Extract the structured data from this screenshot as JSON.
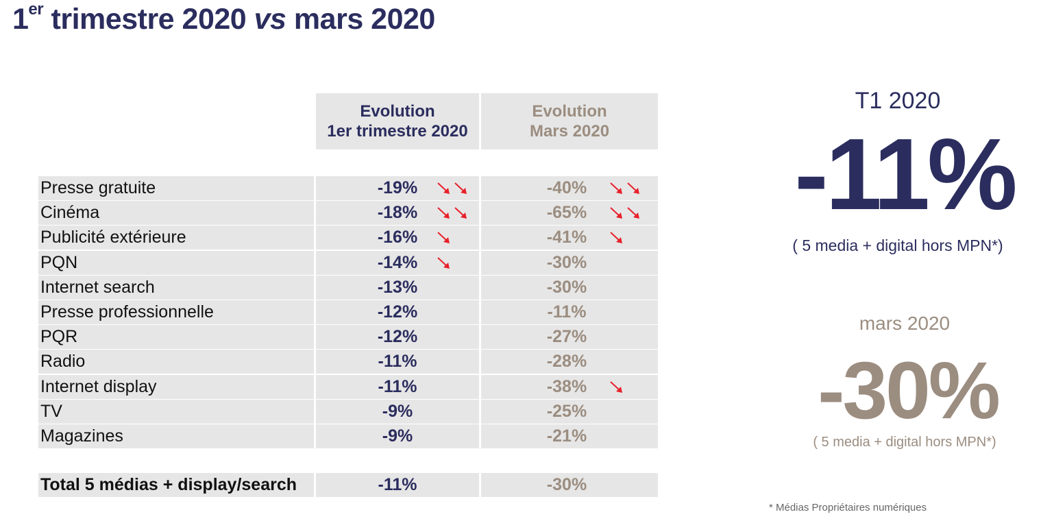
{
  "title": {
    "lead": "1",
    "sup": "er",
    "part1": " trimestre 2020 ",
    "vs": "vs",
    "part2": " mars 2020"
  },
  "table": {
    "header_q1": {
      "line1": "Evolution",
      "line2": "1er trimestre 2020"
    },
    "header_mar": {
      "line1": "Evolution",
      "line2": "Mars 2020"
    },
    "rows": [
      {
        "label": "Presse gratuite",
        "q1": "-19%",
        "q1_arrows": 2,
        "mar": "-40%",
        "mar_arrows": 2
      },
      {
        "label": "Cinéma",
        "q1": "-18%",
        "q1_arrows": 2,
        "mar": "-65%",
        "mar_arrows": 2
      },
      {
        "label": "Publicité extérieure",
        "q1": "-16%",
        "q1_arrows": 1,
        "mar": "-41%",
        "mar_arrows": 1
      },
      {
        "label": "PQN",
        "q1": "-14%",
        "q1_arrows": 1,
        "mar": "-30%",
        "mar_arrows": 0
      },
      {
        "label": "Internet search",
        "q1": "-13%",
        "q1_arrows": 0,
        "mar": "-30%",
        "mar_arrows": 0
      },
      {
        "label": "Presse professionnelle",
        "q1": "-12%",
        "q1_arrows": 0,
        "mar": "-11%",
        "mar_arrows": 0
      },
      {
        "label": "PQR",
        "q1": "-12%",
        "q1_arrows": 0,
        "mar": "-27%",
        "mar_arrows": 0
      },
      {
        "label": "Radio",
        "q1": "-11%",
        "q1_arrows": 0,
        "mar": "-28%",
        "mar_arrows": 0
      },
      {
        "label": "Internet display",
        "q1": "-11%",
        "q1_arrows": 0,
        "mar": "-38%",
        "mar_arrows": 1
      },
      {
        "label": "TV",
        "q1": "-9%",
        "q1_arrows": 0,
        "mar": "-25%",
        "mar_arrows": 0
      },
      {
        "label": "Magazines",
        "q1": "-9%",
        "q1_arrows": 0,
        "mar": "-21%",
        "mar_arrows": 0
      }
    ],
    "total": {
      "label": "Total 5 médias + display/search",
      "q1": "-11%",
      "mar": "-30%"
    }
  },
  "kpi": {
    "t1": {
      "label": "T1 2020",
      "value": "-11%",
      "note": "( 5 media + digital hors MPN*)"
    },
    "mar": {
      "label": "mars 2020",
      "value": "-30%",
      "note": "( 5 media + digital hors MPN*)"
    }
  },
  "footnote": "* Médias Propriétaires numériques",
  "colors": {
    "navy": "#2b2d5e",
    "taupe": "#9b8d80",
    "cell_bg": "#e6e6e6",
    "arrow_red": "#e8202a"
  },
  "icons": {
    "decline": "down-right-arrow-icon"
  }
}
